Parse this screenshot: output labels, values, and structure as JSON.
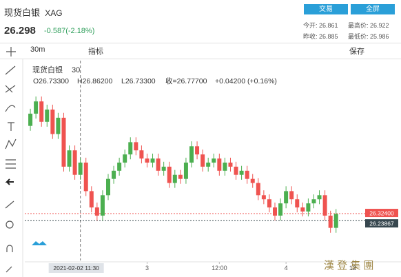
{
  "header": {
    "name": "现货白银",
    "symbol": "XAG",
    "price": "26.298",
    "change": "-0.587(-2.18%)",
    "buttons": [
      "交易",
      "全屏"
    ],
    "stats": [
      [
        "今开:",
        "26.861"
      ],
      [
        "最高价:",
        "26.922"
      ],
      [
        "昨收:",
        "26.885"
      ],
      [
        "最低价:",
        "25.986"
      ]
    ]
  },
  "toolbar": {
    "interval": "30m",
    "indicator": "指标",
    "save": "保存"
  },
  "legend": {
    "name": "现货白银",
    "interval": "30",
    "open": "O26.73300",
    "high": "H26.86200",
    "low": "L26.73300",
    "close": "收=26.77700",
    "change": "+0.04200 (+0.16%)"
  },
  "watermark": "漢 登 集 團",
  "chart_data": {
    "type": "candlestick",
    "open": [
      27.4,
      27.55,
      27.7,
      27.45,
      27.6,
      27.3,
      27.5,
      26.9,
      27.1,
      26.8,
      26.95,
      26.6,
      26.4,
      26.3,
      26.55,
      26.75,
      26.85,
      26.95,
      27.05,
      27.2,
      27.1,
      27.0,
      26.95,
      27.0,
      26.85,
      26.9,
      26.7,
      26.8,
      26.75,
      26.95,
      27.15,
      27.05,
      26.9,
      26.95,
      27.0,
      26.85,
      26.95,
      26.9,
      26.8,
      26.85,
      26.75,
      26.7,
      26.55,
      26.5,
      26.4,
      26.3,
      26.45,
      26.6,
      26.5,
      26.4,
      26.35,
      26.45,
      26.5,
      26.55,
      26.3,
      26.15
    ],
    "high": [
      27.61,
      27.76,
      27.76,
      27.66,
      27.66,
      27.56,
      27.56,
      27.16,
      27.16,
      27.01,
      27.01,
      26.66,
      26.46,
      26.61,
      26.81,
      26.91,
      27.01,
      27.11,
      27.26,
      27.26,
      27.16,
      27.06,
      27.06,
      27.06,
      26.96,
      26.96,
      26.86,
      26.86,
      27.01,
      27.21,
      27.21,
      27.11,
      27.01,
      27.06,
      27.06,
      27.01,
      27.01,
      26.96,
      26.91,
      26.91,
      26.81,
      26.76,
      26.61,
      26.56,
      26.46,
      26.51,
      26.66,
      26.66,
      26.56,
      26.46,
      26.51,
      26.56,
      26.61,
      26.61,
      26.36,
      26.38
    ],
    "low": [
      27.34,
      27.49,
      27.39,
      27.39,
      27.24,
      27.24,
      26.84,
      26.84,
      26.74,
      26.74,
      26.54,
      26.34,
      26.24,
      26.24,
      26.49,
      26.69,
      26.79,
      26.89,
      26.99,
      27.04,
      26.94,
      26.89,
      26.89,
      26.79,
      26.79,
      26.64,
      26.64,
      26.69,
      26.69,
      26.89,
      26.99,
      26.84,
      26.84,
      26.89,
      26.79,
      26.79,
      26.84,
      26.74,
      26.74,
      26.69,
      26.64,
      26.49,
      26.44,
      26.34,
      26.24,
      26.24,
      26.39,
      26.44,
      26.34,
      26.29,
      26.29,
      26.39,
      26.44,
      26.24,
      26.09,
      26.09
    ],
    "close": [
      27.55,
      27.7,
      27.45,
      27.6,
      27.3,
      27.5,
      26.9,
      27.1,
      26.8,
      26.95,
      26.6,
      26.4,
      26.3,
      26.55,
      26.75,
      26.85,
      26.95,
      27.05,
      27.2,
      27.1,
      27.0,
      26.95,
      27.0,
      26.85,
      26.9,
      26.7,
      26.8,
      26.75,
      26.95,
      27.15,
      27.05,
      26.9,
      26.95,
      27.0,
      26.85,
      26.95,
      26.9,
      26.8,
      26.85,
      26.75,
      26.7,
      26.55,
      26.5,
      26.4,
      26.3,
      26.45,
      26.6,
      26.5,
      26.4,
      26.35,
      26.45,
      26.5,
      26.55,
      26.3,
      26.15,
      26.32
    ],
    "up_color": "#4caf50",
    "down_color": "#ef5350",
    "xlim": [
      -1,
      59
    ],
    "ylim": [
      25.75,
      28.2
    ],
    "xticks": [
      {
        "value": 21,
        "label": "3"
      },
      {
        "value": 34,
        "label": "12:00"
      },
      {
        "value": 46,
        "label": "4"
      },
      {
        "value": 58,
        "label": "12"
      }
    ],
    "crosshair": {
      "value": 9,
      "label": "2021-02-02   11:30"
    },
    "price_lines": [
      {
        "value": 26.324,
        "label": "26.32400",
        "color": "#ef5350"
      },
      {
        "value": 26.23867,
        "label": "26.23867",
        "color": "#37474f"
      }
    ]
  }
}
